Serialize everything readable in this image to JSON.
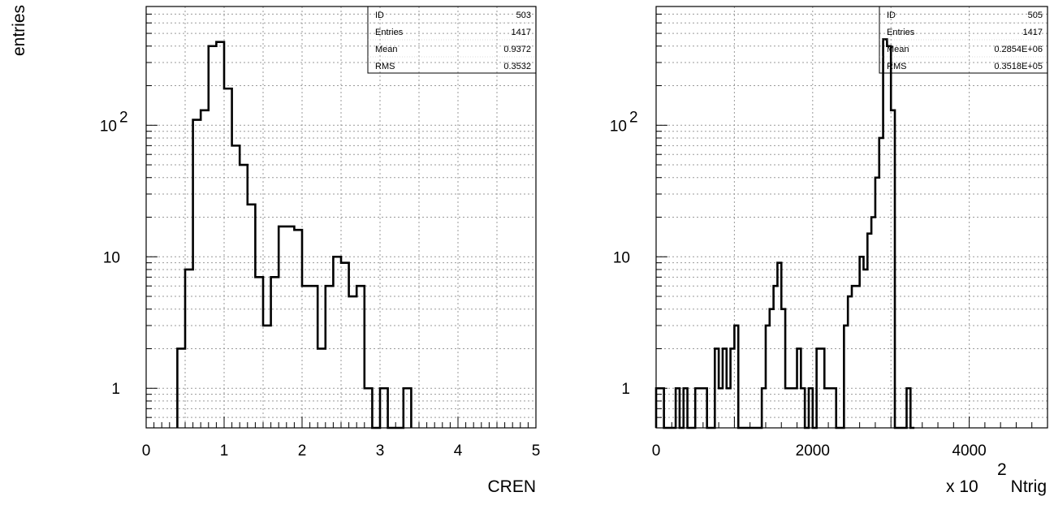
{
  "chart_data": [
    {
      "type": "bar",
      "ylabel": "entries",
      "xlabel": "CREN",
      "xlim": [
        0,
        5
      ],
      "ylim": [
        0.5,
        800
      ],
      "yscale": "log",
      "grid": true,
      "xticks": [
        "0",
        "1",
        "2",
        "3",
        "4",
        "5"
      ],
      "yticks": [
        {
          "value": 1,
          "base": "1",
          "exp": ""
        },
        {
          "value": 10,
          "base": "10",
          "exp": ""
        },
        {
          "value": 100,
          "base": "10",
          "exp": "2"
        }
      ],
      "bin_width": 0.1,
      "x": [
        0.4,
        0.5,
        0.6,
        0.7,
        0.8,
        0.9,
        1.0,
        1.1,
        1.2,
        1.3,
        1.4,
        1.5,
        1.6,
        1.7,
        1.8,
        1.9,
        2.0,
        2.1,
        2.2,
        2.3,
        2.4,
        2.5,
        2.6,
        2.7,
        2.8,
        2.9,
        3.0,
        3.1,
        3.2,
        3.3
      ],
      "values": [
        2,
        8,
        110,
        130,
        400,
        430,
        190,
        70,
        50,
        25,
        7,
        3,
        7,
        17,
        17,
        16,
        6,
        6,
        2,
        6,
        10,
        9,
        5,
        6,
        1,
        0,
        1,
        0,
        0,
        1
      ],
      "stats": [
        {
          "label": "ID",
          "value": "503"
        },
        {
          "label": "Entries",
          "value": "1417"
        },
        {
          "label": "Mean",
          "value": "0.9372"
        },
        {
          "label": "RMS",
          "value": "0.3532"
        }
      ]
    },
    {
      "type": "bar",
      "xlabel": "Ntrig",
      "xlabel_prefix": "x 10",
      "xlabel_exp": "2",
      "xlim": [
        0,
        5000
      ],
      "ylim": [
        0.5,
        800
      ],
      "yscale": "log",
      "grid": true,
      "xticks": [
        "0",
        "2000",
        "4000"
      ],
      "yticks": [
        {
          "value": 1,
          "base": "1",
          "exp": ""
        },
        {
          "value": 10,
          "base": "10",
          "exp": ""
        },
        {
          "value": 100,
          "base": "10",
          "exp": "2"
        }
      ],
      "bin_width": 50,
      "x": [
        0,
        50,
        100,
        150,
        200,
        250,
        300,
        350,
        400,
        450,
        500,
        550,
        600,
        650,
        700,
        750,
        800,
        850,
        900,
        950,
        1000,
        1050,
        1100,
        1150,
        1200,
        1250,
        1300,
        1350,
        1400,
        1450,
        1500,
        1550,
        1600,
        1650,
        1700,
        1750,
        1800,
        1850,
        1900,
        1950,
        2000,
        2050,
        2100,
        2150,
        2200,
        2250,
        2300,
        2350,
        2400,
        2450,
        2500,
        2550,
        2600,
        2650,
        2700,
        2750,
        2800,
        2850,
        2900,
        2950,
        3000,
        3050,
        3100,
        3150,
        3200,
        3250
      ],
      "values": [
        1,
        1,
        0,
        0,
        0,
        1,
        0,
        1,
        0,
        0,
        1,
        1,
        1,
        0,
        0,
        2,
        1,
        2,
        1,
        2,
        3,
        0,
        0,
        0,
        0,
        0,
        0,
        1,
        3,
        4,
        6,
        9,
        4,
        1,
        1,
        1,
        2,
        1,
        0,
        1,
        0,
        2,
        2,
        1,
        1,
        1,
        0,
        0,
        3,
        5,
        6,
        6,
        10,
        8,
        15,
        20,
        40,
        80,
        450,
        400,
        130,
        0,
        0,
        0,
        1,
        0
      ],
      "stats": [
        {
          "label": "ID",
          "value": "505"
        },
        {
          "label": "Entries",
          "value": "1417"
        },
        {
          "label": "Mean",
          "value": "0.2854E+06"
        },
        {
          "label": "RMS",
          "value": "0.3518E+05"
        }
      ]
    }
  ]
}
